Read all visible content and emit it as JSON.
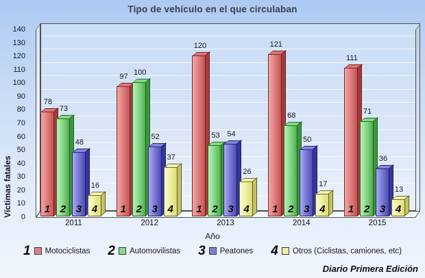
{
  "title": "Tipo de vehículo en el que circulaban",
  "credit": "Diario Primera Edición",
  "colors": {
    "background_top": "#adc9f2",
    "background_bottom": "#f0f5fd",
    "wall_frame": "#4f4f4f",
    "gridline": "#ffffff"
  },
  "chart_data": {
    "type": "bar",
    "title": "Tipo de vehículo en el que circulaban",
    "xlabel": "Año",
    "ylabel": "Víctimas fatales",
    "ylim": [
      0,
      140
    ],
    "y_ticks": [
      0,
      10,
      20,
      30,
      40,
      50,
      60,
      70,
      80,
      90,
      100,
      110,
      120,
      130,
      140
    ],
    "grid": true,
    "legend_position": "bottom",
    "style": "3d-bars",
    "categories": [
      "2011",
      "2012",
      "2013",
      "2014",
      "2015"
    ],
    "series": [
      {
        "name": "Motociclistas",
        "marker": "1",
        "color": "#e18181",
        "values": [
          78,
          97,
          120,
          121,
          111
        ]
      },
      {
        "name": "Automovilistas",
        "marker": "2",
        "color": "#8ada8a",
        "values": [
          73,
          100,
          53,
          68,
          71
        ]
      },
      {
        "name": "Peatones",
        "marker": "3",
        "color": "#7d7dd8",
        "values": [
          48,
          52,
          54,
          50,
          36
        ]
      },
      {
        "name": "Otros (Ciclistas, camiones, etc)",
        "marker": "4",
        "color": "#f0f0a6",
        "values": [
          16,
          37,
          26,
          17,
          13
        ]
      }
    ]
  }
}
